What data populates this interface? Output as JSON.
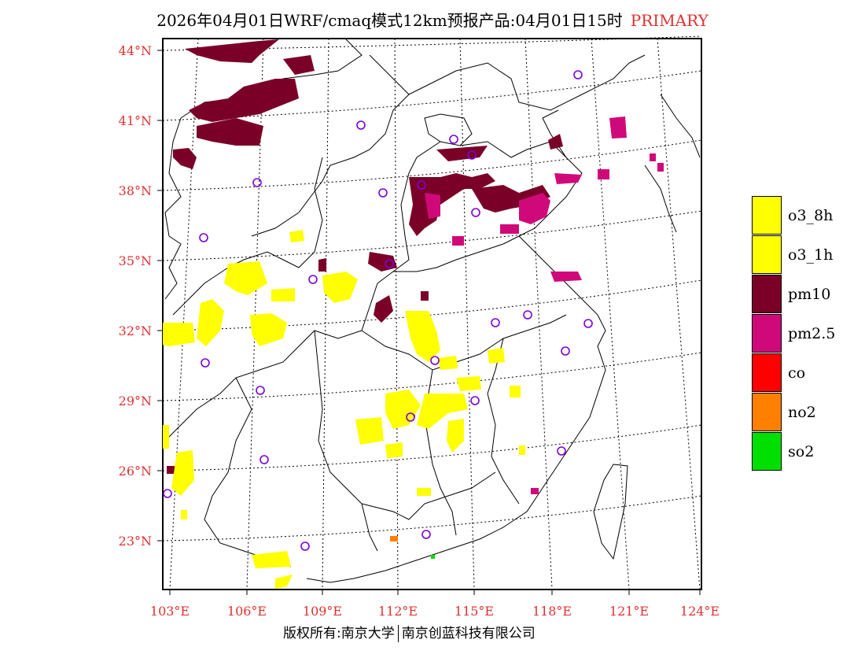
{
  "title": {
    "main": "2026年04月01日WRF/cmaq模式12km预报产品:04月01日15时",
    "tag": "PRIMARY"
  },
  "footer": {
    "copyright": "版权所有:南京大学",
    "company": "南京创蓝科技有限公司"
  },
  "axes": {
    "lat_labels": [
      "44°N",
      "41°N",
      "38°N",
      "35°N",
      "32°N",
      "29°N",
      "26°N",
      "23°N"
    ],
    "lon_labels": [
      "103°E",
      "106°E",
      "109°E",
      "112°E",
      "115°E",
      "118°E",
      "121°E",
      "124°E"
    ]
  },
  "legend": [
    {
      "label": "o3_8h",
      "color": "#ffff00"
    },
    {
      "label": "o3_1h",
      "color": "#ffff00"
    },
    {
      "label": "pm10",
      "color": "#7a0028"
    },
    {
      "label": "pm2.5",
      "color": "#d0097a"
    },
    {
      "label": "co",
      "color": "#ff0000"
    },
    {
      "label": "no2",
      "color": "#ff8000"
    },
    {
      "label": "so2",
      "color": "#00e000"
    }
  ],
  "colors": {
    "lat_lon_label": "#e03030",
    "station_marker": "#7a00d8",
    "frame": "#000000"
  }
}
